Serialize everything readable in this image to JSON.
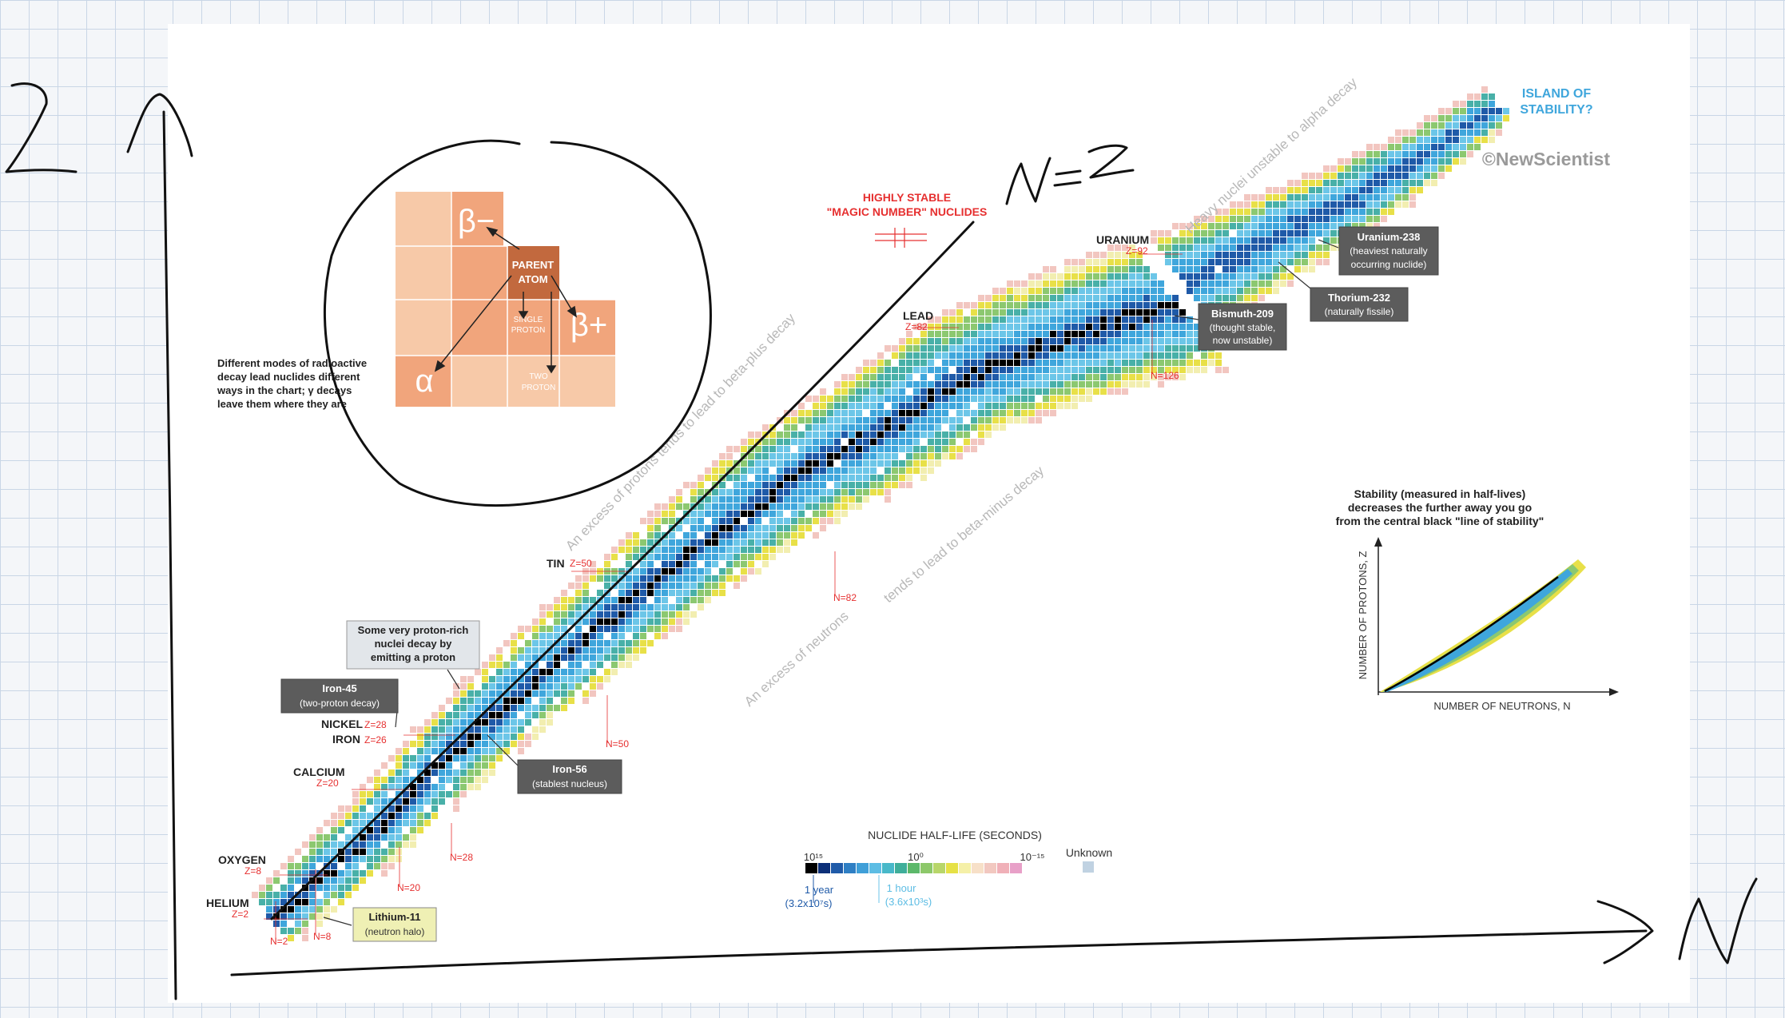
{
  "chart_title": "",
  "copyright": "©NewScientist",
  "elements": [
    {
      "name": "HELIUM",
      "z": "Z=2"
    },
    {
      "name": "OXYGEN",
      "z": "Z=8"
    },
    {
      "name": "CALCIUM",
      "z": "Z=20"
    },
    {
      "name": "IRON",
      "z": "Z=26"
    },
    {
      "name": "NICKEL",
      "z": "Z=28"
    },
    {
      "name": "TIN",
      "z": "Z=50"
    },
    {
      "name": "LEAD",
      "z": "Z=82"
    },
    {
      "name": "URANIUM",
      "z": "Z=92"
    }
  ],
  "neutron_markers": [
    "N=2",
    "N=8",
    "N=20",
    "N=28",
    "N=50",
    "N=82",
    "N=126"
  ],
  "callouts": {
    "lithium11": {
      "title": "Lithium-11",
      "sub": "(neutron halo)"
    },
    "iron45": {
      "title": "Iron-45",
      "sub": "(two-proton decay)"
    },
    "iron56": {
      "title": "Iron-56",
      "sub": "(stablest nucleus)"
    },
    "bismuth209": {
      "title": "Bismuth-209",
      "sub1": "(thought stable,",
      "sub2": "now unstable)"
    },
    "uranium238": {
      "title": "Uranium-238",
      "sub1": "(heaviest naturally",
      "sub2": "occurring nuclide)"
    },
    "thorium232": {
      "title": "Thorium-232",
      "sub": "(naturally fissile)"
    },
    "proton_rich": {
      "line1": "Some very proton-rich",
      "line2": "nuclei decay by",
      "line3": "emitting a proton"
    }
  },
  "magic": {
    "line1": "HIGHLY STABLE",
    "line2": "\"MAGIC NUMBER\" NUCLIDES"
  },
  "island": {
    "line1": "ISLAND OF",
    "line2": "STABILITY?"
  },
  "diagonal_texts": {
    "proton_excess": "An excess of protons tends to lead to beta-plus decay",
    "neutron_excess_1": "An excess of neutrons",
    "neutron_excess_2": "tends to lead to beta-minus decay",
    "heavy": "Heavy nuclei unstable to alpha decay"
  },
  "decay_inset": {
    "beta_minus": "β−",
    "beta_plus": "β+",
    "alpha": "α",
    "parent1": "PARENT",
    "parent2": "ATOM",
    "single1": "SINGLE",
    "single2": "PROTON",
    "two1": "TWO",
    "two2": "PROTON",
    "desc1": "Different modes of radioactive",
    "desc2": "decay lead nuclides different",
    "desc3": "ways in the chart; γ decays",
    "desc4": "leave them where they are"
  },
  "legend": {
    "title": "NUCLIDE HALF-LIFE (SECONDS)",
    "t15": "10¹⁵",
    "t0": "10⁰",
    "tm15": "10⁻¹⁵",
    "unknown": "Unknown",
    "year1": "1 year",
    "year2": "(3.2x10⁷s)",
    "hour1": "1 hour",
    "hour2": "(3.6x10³s)",
    "colors": [
      "#000000",
      "#0c2f78",
      "#1f5aa8",
      "#2f7fc4",
      "#3f9fd8",
      "#5dbde4",
      "#48b8c9",
      "#3fae9a",
      "#5cb86a",
      "#8dc86a",
      "#b8d66a",
      "#e6e145",
      "#f5f0a8",
      "#f7e0c8",
      "#f2c8c0",
      "#f0b0b8",
      "#e8a0c8"
    ],
    "unknown_color": "#c0d2e2"
  },
  "inset_chart": {
    "title1": "Stability (measured in half-lives)",
    "title2": "decreases the further away you go",
    "title3": "from the central black \"line of stability\"",
    "xlabel": "NUMBER OF NEUTRONS, N",
    "ylabel": "NUMBER OF PROTONS, Z"
  },
  "handwriting": {
    "z_axis": "Z",
    "n_axis": "N",
    "nz_line": "N=Z"
  },
  "colors": {
    "stable": "#000000",
    "core_blue": "#1f5aa8",
    "mid_blue": "#3fa6dc",
    "light_blue": "#6cc6e8",
    "teal": "#48b0a8",
    "green": "#8cc870",
    "yellow": "#e8e048",
    "pale": "#f2eeb0",
    "pink": "#f2c6c0",
    "magic_red": "#e63030",
    "callout_dark": "#5c5c5c",
    "callout_light": "#e2e6ea",
    "callout_yellow": "#eff0b4",
    "decay_light": "#f7c9a8",
    "decay_mid": "#f1a57c",
    "decay_dark": "#c2693e"
  }
}
